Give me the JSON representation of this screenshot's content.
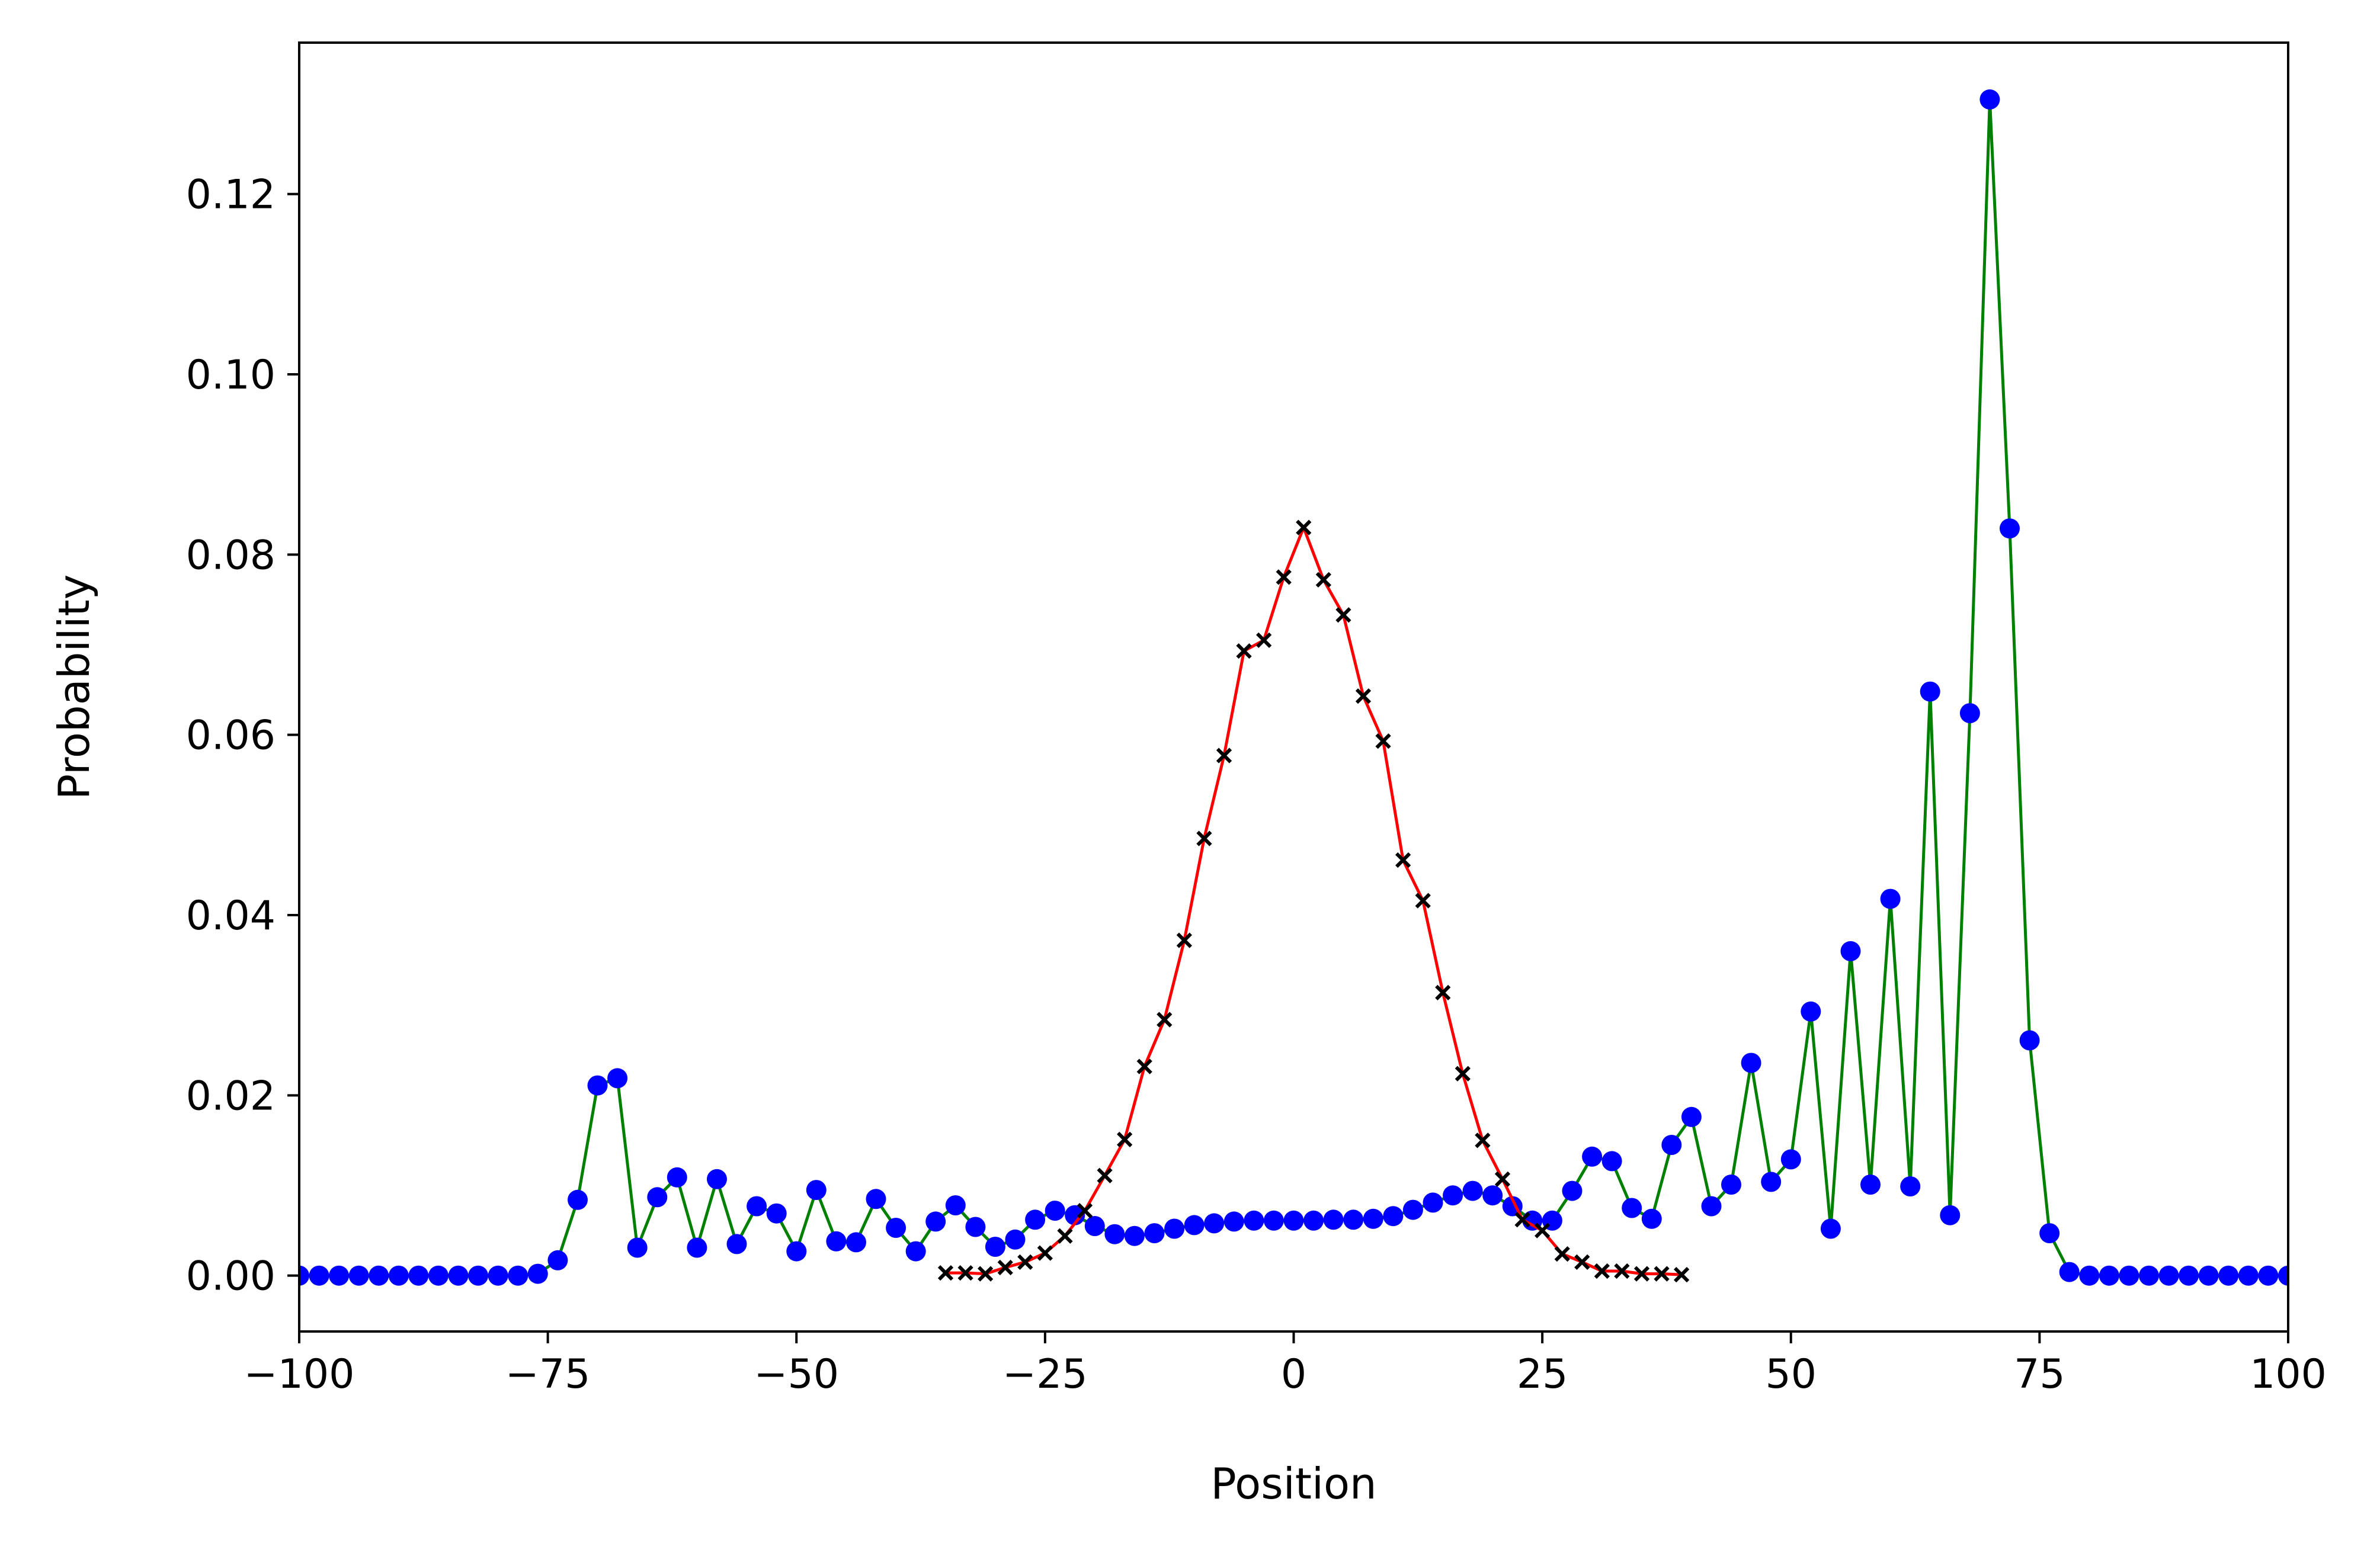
{
  "chart_data": {
    "type": "line",
    "title": "",
    "xlabel": "Position",
    "ylabel": "Probability",
    "xlim": [
      -100,
      100
    ],
    "ylim": [
      -0.0062,
      0.1368
    ],
    "xticks": [
      -100,
      -75,
      -50,
      -25,
      0,
      25,
      50,
      75,
      100
    ],
    "xtick_labels": [
      "−100",
      "−75",
      "−50",
      "−25",
      "0",
      "25",
      "50",
      "75",
      "100"
    ],
    "yticks": [
      0.0,
      0.02,
      0.04,
      0.06,
      0.08,
      0.1,
      0.12
    ],
    "ytick_labels": [
      "0.00",
      "0.02",
      "0.04",
      "0.06",
      "0.08",
      "0.10",
      "0.12"
    ],
    "grid": false,
    "legend": "none",
    "series": [
      {
        "line_color": "#008000",
        "marker": "circle",
        "marker_color": "#0000ff",
        "x": [
          -100,
          -98,
          -96,
          -94,
          -92,
          -90,
          -88,
          -86,
          -84,
          -82,
          -80,
          -78,
          -76,
          -74,
          -72,
          -70,
          -68,
          -66,
          -64,
          -62,
          -60,
          -58,
          -56,
          -54,
          -52,
          -50,
          -48,
          -46,
          -44,
          -42,
          -40,
          -38,
          -36,
          -34,
          -32,
          -30,
          -28,
          -26,
          -24,
          -22,
          -20,
          -18,
          -16,
          -14,
          -12,
          -10,
          -8,
          -6,
          -4,
          -2,
          0,
          2,
          4,
          6,
          8,
          10,
          12,
          14,
          16,
          18,
          20,
          22,
          24,
          26,
          28,
          30,
          32,
          34,
          36,
          38,
          40,
          42,
          44,
          46,
          48,
          50,
          52,
          54,
          56,
          58,
          60,
          62,
          64,
          66,
          68,
          70,
          72,
          74,
          76,
          78,
          80,
          82,
          84,
          86,
          88,
          90,
          92,
          94,
          96,
          98,
          100
        ],
        "y": [
          0,
          0,
          0,
          0,
          0,
          0,
          0,
          0,
          0,
          0,
          0,
          0,
          0.0002,
          0.0017,
          0.0084,
          0.0211,
          0.0219,
          0.0031,
          0.0087,
          0.0109,
          0.0031,
          0.0107,
          0.0035,
          0.0077,
          0.0069,
          0.0027,
          0.0095,
          0.0038,
          0.0037,
          0.0085,
          0.0053,
          0.0027,
          0.006,
          0.0078,
          0.0054,
          0.0032,
          0.004,
          0.0062,
          0.0072,
          0.0067,
          0.0055,
          0.0046,
          0.0044,
          0.0047,
          0.0052,
          0.0056,
          0.0058,
          0.006,
          0.0061,
          0.0061,
          0.0061,
          0.0061,
          0.0062,
          0.0062,
          0.0063,
          0.0066,
          0.0073,
          0.0081,
          0.0089,
          0.0094,
          0.0089,
          0.0077,
          0.0061,
          0.0061,
          0.0094,
          0.0132,
          0.0127,
          0.0075,
          0.0063,
          0.0145,
          0.0176,
          0.0077,
          0.0101,
          0.0236,
          0.0104,
          0.0129,
          0.0293,
          0.0052,
          0.036,
          0.0101,
          0.0418,
          0.0099,
          0.0648,
          0.0067,
          0.0624,
          0.1305,
          0.0829,
          0.0261,
          0.0047,
          0.0004,
          0,
          0,
          0,
          0,
          0,
          0,
          0,
          0,
          0,
          0,
          0
        ]
      },
      {
        "line_color": "#ff0000",
        "marker": "x",
        "marker_color": "#000000",
        "x": [
          -35,
          -33,
          -31,
          -29,
          -27,
          -25,
          -23,
          -21,
          -19,
          -17,
          -15,
          -13,
          -11,
          -9,
          -7,
          -5,
          -3,
          -1,
          1,
          3,
          5,
          7,
          9,
          11,
          13,
          15,
          17,
          19,
          21,
          23,
          25,
          27,
          29,
          31,
          33,
          35,
          37,
          39
        ],
        "y": [
          0.0003,
          0.0003,
          0.0002,
          0.0009,
          0.0015,
          0.0025,
          0.0044,
          0.0072,
          0.0111,
          0.0151,
          0.0232,
          0.0284,
          0.0372,
          0.0485,
          0.0577,
          0.0693,
          0.0705,
          0.0775,
          0.083,
          0.0772,
          0.0733,
          0.0643,
          0.0593,
          0.0461,
          0.0416,
          0.0314,
          0.0224,
          0.015,
          0.0107,
          0.0062,
          0.005,
          0.0024,
          0.0015,
          0.0005,
          0.0005,
          0.0002,
          0.0002,
          0.0001
        ]
      }
    ]
  }
}
